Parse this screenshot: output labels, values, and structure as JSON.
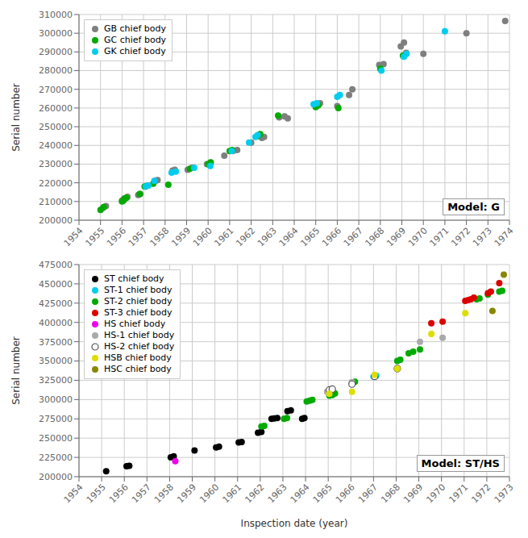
{
  "chart_data": [
    {
      "type": "scatter",
      "annotations": [
        "Model: G"
      ],
      "ylabel": "Serial number",
      "xlim": [
        1954,
        1974
      ],
      "ylim": [
        200000,
        310000
      ],
      "xticks": [
        1954,
        1955,
        1956,
        1957,
        1958,
        1959,
        1960,
        1961,
        1962,
        1963,
        1964,
        1965,
        1966,
        1967,
        1968,
        1969,
        1970,
        1971,
        1972,
        1973,
        1974
      ],
      "yticks": [
        200000,
        210000,
        220000,
        230000,
        240000,
        250000,
        260000,
        270000,
        280000,
        290000,
        300000,
        310000
      ],
      "grid": true,
      "legend": "upper left",
      "marker": "circle",
      "series": [
        {
          "name": "GB chief body",
          "color": "#7f7f7f",
          "x": [
            1955.1,
            1955.25,
            1956.0,
            1956.08,
            1956.15,
            1956.25,
            1956.75,
            1956.85,
            1957.1,
            1957.2,
            1957.55,
            1957.65,
            1958.35,
            1958.45,
            1959.05,
            1959.25,
            1959.95,
            1960.1,
            1960.75,
            1961.15,
            1961.35,
            1962.0,
            1962.5,
            1962.6,
            1963.3,
            1963.55,
            1963.7,
            1965.1,
            1965.2,
            1966.0,
            1966.55,
            1966.7,
            1967.95,
            1968.15,
            1968.95,
            1969.1,
            1969.2,
            1970.0,
            1972.0,
            1973.8
          ],
          "values": [
            206500,
            207500,
            210500,
            211000,
            211500,
            212500,
            213500,
            214000,
            218000,
            218500,
            221000,
            221500,
            226500,
            227000,
            227000,
            228000,
            230000,
            230500,
            234500,
            237000,
            237500,
            241500,
            244000,
            244500,
            255000,
            255500,
            254500,
            261500,
            262500,
            261000,
            267000,
            270000,
            283000,
            283500,
            293000,
            295000,
            289500,
            289000,
            300000,
            306500
          ]
        },
        {
          "name": "GC chief body",
          "color": "#00aa00",
          "x": [
            1955.0,
            1955.15,
            1956.0,
            1956.06,
            1956.1,
            1956.2,
            1956.82,
            1957.05,
            1957.45,
            1958.15,
            1959.15,
            1960.0,
            1960.12,
            1961.0,
            1961.12,
            1962.3,
            1962.42,
            1963.25,
            1965.0,
            1965.12,
            1966.05,
            1968.0,
            1969.05
          ],
          "values": [
            205500,
            207000,
            210000,
            210500,
            211500,
            212000,
            214000,
            218000,
            219500,
            219000,
            227500,
            230000,
            231000,
            237000,
            237500,
            245000,
            246000,
            256000,
            260500,
            261500,
            260000,
            281000,
            288000
          ]
        },
        {
          "name": "GK chief body",
          "color": "#00ccee",
          "x": [
            1957.1,
            1957.22,
            1957.5,
            1958.3,
            1958.5,
            1959.35,
            1960.1,
            1961.1,
            1961.9,
            1962.2,
            1962.3,
            1964.9,
            1965.05,
            1966.0,
            1966.12,
            1968.05,
            1969.1,
            1969.22,
            1971.0
          ],
          "values": [
            218000,
            218500,
            221000,
            225500,
            226000,
            228000,
            229000,
            237000,
            241500,
            244500,
            245500,
            262000,
            262500,
            266000,
            267000,
            280000,
            287500,
            289000,
            301000
          ]
        }
      ]
    },
    {
      "type": "scatter",
      "annotations": [
        "Model: ST/HS"
      ],
      "ylabel": "Serial number",
      "xlabel": "Inspection date (year)",
      "xlim": [
        1954,
        1973
      ],
      "ylim": [
        200000,
        475000
      ],
      "xticks": [
        1954,
        1955,
        1956,
        1957,
        1958,
        1959,
        1960,
        1961,
        1962,
        1963,
        1964,
        1965,
        1966,
        1967,
        1968,
        1969,
        1970,
        1971,
        1972,
        1973
      ],
      "yticks": [
        200000,
        225000,
        250000,
        275000,
        300000,
        325000,
        350000,
        375000,
        400000,
        425000,
        450000,
        475000
      ],
      "grid": true,
      "legend": "upper left",
      "marker": "circle",
      "series": [
        {
          "name": "ST chief body",
          "color": "#000000",
          "x": [
            1955.2,
            1956.1,
            1956.22,
            1958.05,
            1958.18,
            1959.1,
            1960.05,
            1960.18,
            1961.05,
            1961.18,
            1961.9,
            1962.05,
            1962.5,
            1962.62,
            1962.75,
            1963.2,
            1963.35,
            1963.85,
            1963.95
          ],
          "values": [
            207000,
            213500,
            214000,
            225000,
            226500,
            234000,
            238000,
            239000,
            244500,
            245000,
            257000,
            258000,
            275000,
            275500,
            276000,
            285000,
            286000,
            275000,
            276000
          ]
        },
        {
          "name": "ST-1 chief body",
          "color": "#00ccee",
          "x": [
            1965.2,
            1966.1,
            1967.0,
            1967.12,
            1968.05
          ],
          "values": [
            307000,
            322000,
            330000,
            331000,
            340000
          ]
        },
        {
          "name": "ST-2 chief body",
          "color": "#00aa00",
          "x": [
            1962.05,
            1962.18,
            1963.05,
            1963.18,
            1964.05,
            1964.18,
            1964.3,
            1965.05,
            1965.18,
            1965.3,
            1966.05,
            1966.18,
            1967.05,
            1968.05,
            1968.18,
            1968.55,
            1968.75,
            1969.05,
            1971.55,
            1971.68,
            1972.05,
            1972.55,
            1972.68
          ],
          "values": [
            265000,
            266000,
            275000,
            276000,
            297500,
            298500,
            299500,
            305000,
            306000,
            308000,
            322000,
            323000,
            330000,
            350000,
            351500,
            360000,
            362000,
            365000,
            430000,
            431000,
            436000,
            440000,
            441000
          ]
        },
        {
          "name": "ST-3 chief body",
          "color": "#dd0000",
          "x": [
            1969.55,
            1970.05,
            1971.05,
            1971.18,
            1971.3,
            1971.43,
            1972.05,
            1972.18,
            1972.55
          ],
          "values": [
            399000,
            401000,
            428000,
            429000,
            430000,
            432000,
            438000,
            440000,
            451000
          ]
        },
        {
          "name": "HS chief body",
          "color": "#ee00ee",
          "x": [
            1958.25
          ],
          "values": [
            220000
          ]
        },
        {
          "name": "HS-1 chief body",
          "color": "#aaaaaa",
          "x": [
            1964.95,
            1965.08,
            1966.05,
            1967.05,
            1968.05,
            1969.05,
            1970.05
          ],
          "values": [
            310000,
            312000,
            322500,
            331000,
            341000,
            375000,
            380000
          ]
        },
        {
          "name": "HS-2 chief body",
          "color": "#555555",
          "marker": "hollow",
          "x": [
            1965.05,
            1965.18,
            1966.05,
            1967.05,
            1968.05
          ],
          "values": [
            312500,
            313500,
            320000,
            330000,
            340000
          ]
        },
        {
          "name": "HSB chief body",
          "color": "#dddd00",
          "x": [
            1965.05,
            1966.05,
            1967.05,
            1968.05,
            1969.55,
            1971.05
          ],
          "values": [
            307500,
            310000,
            332000,
            340000,
            385000,
            412000
          ]
        },
        {
          "name": "HSC chief body",
          "color": "#888800",
          "x": [
            1972.25,
            1972.75
          ],
          "values": [
            415000,
            462000
          ]
        }
      ]
    }
  ]
}
